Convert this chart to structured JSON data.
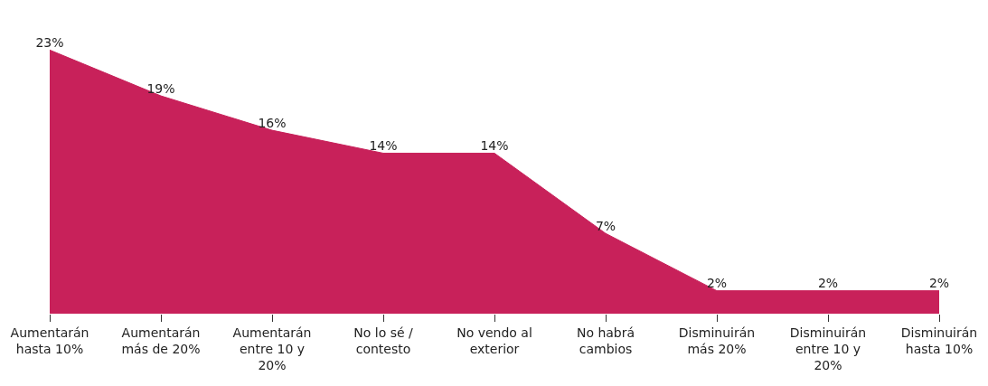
{
  "chart_data": {
    "type": "area",
    "categories": [
      "Aumentarán\nhasta 10%",
      "Aumentarán\nmás de 20%",
      "Aumentarán\nentre 10 y\n20%",
      "No lo sé /\ncontesto",
      "No vendo al\nexterior",
      "No habrá\ncambios",
      "Disminuirán\nmás 20%",
      "Disminuirán\nentre 10 y\n20%",
      "Disminuirán\nhasta 10%"
    ],
    "values": [
      23,
      19,
      16,
      14,
      14,
      7,
      2,
      2,
      2
    ],
    "value_labels": [
      "23%",
      "19%",
      "16%",
      "14%",
      "14%",
      "7%",
      "2%",
      "2%",
      "2%"
    ],
    "color": "#c8215a"
  }
}
